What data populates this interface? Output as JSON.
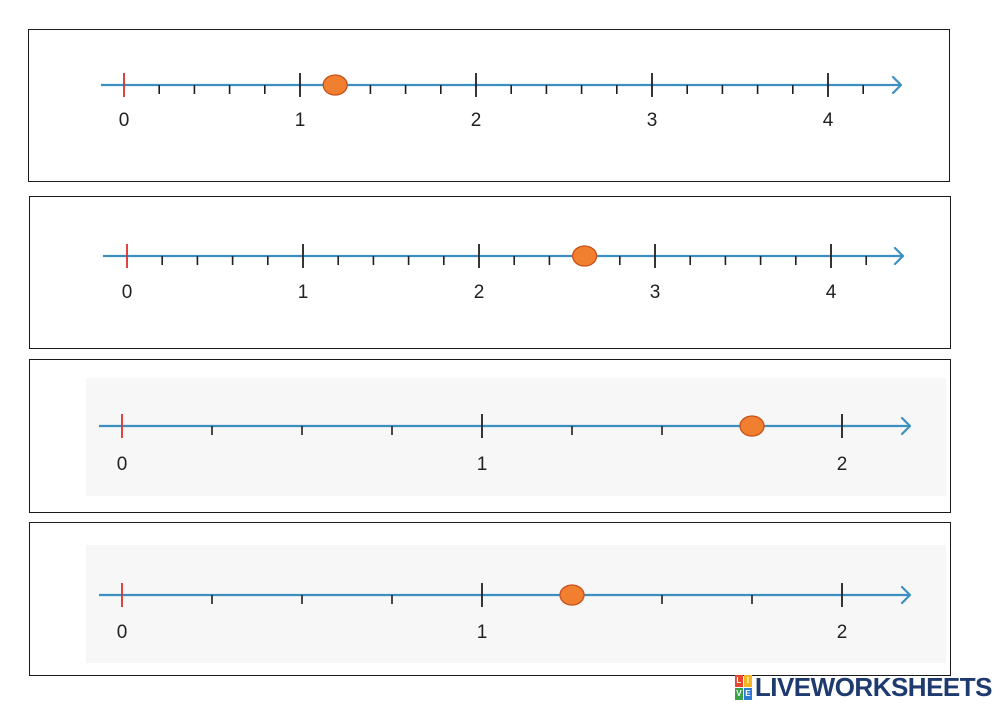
{
  "number_lines": [
    {
      "min": 0,
      "max": 4,
      "subdivisions": 5,
      "major_labels": [
        "0",
        "1",
        "2",
        "3",
        "4"
      ],
      "marked_value": 1.2,
      "extra_minor_ticks_after_max": 1,
      "shaded_background": false
    },
    {
      "min": 0,
      "max": 4,
      "subdivisions": 5,
      "major_labels": [
        "0",
        "1",
        "2",
        "3",
        "4"
      ],
      "marked_value": 2.6,
      "extra_minor_ticks_after_max": 1,
      "shaded_background": false
    },
    {
      "min": 0,
      "max": 2,
      "subdivisions": 4,
      "major_labels": [
        "0",
        "1",
        "2"
      ],
      "marked_value": 1.75,
      "extra_minor_ticks_after_max": 0,
      "shaded_background": true
    },
    {
      "min": 0,
      "max": 2,
      "subdivisions": 4,
      "major_labels": [
        "0",
        "1",
        "2"
      ],
      "marked_value": 1.25,
      "extra_minor_ticks_after_max": 0,
      "shaded_background": true
    }
  ],
  "colors": {
    "axis": "#3b8fc1",
    "zero_tick": "#d9302c",
    "marker": "#f07f2f",
    "brand": "#1e3a6e"
  },
  "brand": {
    "logo_letters": [
      "L",
      "I",
      "V",
      "E"
    ],
    "text": "LIVEWORKSHEETS"
  }
}
